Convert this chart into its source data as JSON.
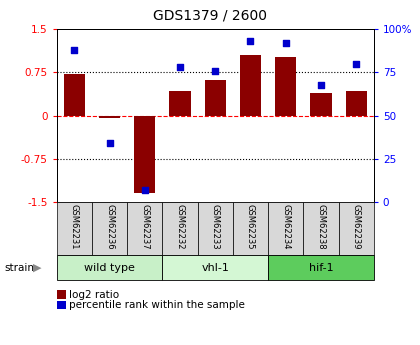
{
  "title": "GDS1379 / 2600",
  "samples": [
    "GSM62231",
    "GSM62236",
    "GSM62237",
    "GSM62232",
    "GSM62233",
    "GSM62235",
    "GSM62234",
    "GSM62238",
    "GSM62239"
  ],
  "log2_ratio": [
    0.72,
    -0.05,
    -1.35,
    0.42,
    0.62,
    1.05,
    1.02,
    0.4,
    0.42
  ],
  "percentile_rank": [
    88,
    34,
    7,
    78,
    76,
    93,
    92,
    68,
    80
  ],
  "groups": [
    {
      "label": "wild type",
      "start": 0,
      "end": 2,
      "color": "#c8f0c8"
    },
    {
      "label": "vhl-1",
      "start": 3,
      "end": 5,
      "color": "#d4f7d4"
    },
    {
      "label": "hif-1",
      "start": 6,
      "end": 8,
      "color": "#5dcc5d"
    }
  ],
  "bar_color": "#8B0000",
  "dot_color": "#0000cc",
  "ylim_left": [
    -1.5,
    1.5
  ],
  "ylim_right": [
    0,
    100
  ],
  "yticks_left": [
    -1.5,
    -0.75,
    0,
    0.75,
    1.5
  ],
  "yticks_left_labels": [
    "-1.5",
    "-0.75",
    "0",
    "0.75",
    "1.5"
  ],
  "yticks_right": [
    0,
    25,
    50,
    75,
    100
  ],
  "yticks_right_labels": [
    "0",
    "25",
    "50",
    "75",
    "100%"
  ],
  "hlines_dotted": [
    -0.75,
    0.75
  ],
  "legend_log2_label": "log2 ratio",
  "legend_pct_label": "percentile rank within the sample",
  "strain_label": "strain",
  "sample_bg_color": "#d8d8d8",
  "title_fontsize": 10,
  "tick_fontsize": 7.5,
  "sample_fontsize": 6,
  "group_fontsize": 8
}
